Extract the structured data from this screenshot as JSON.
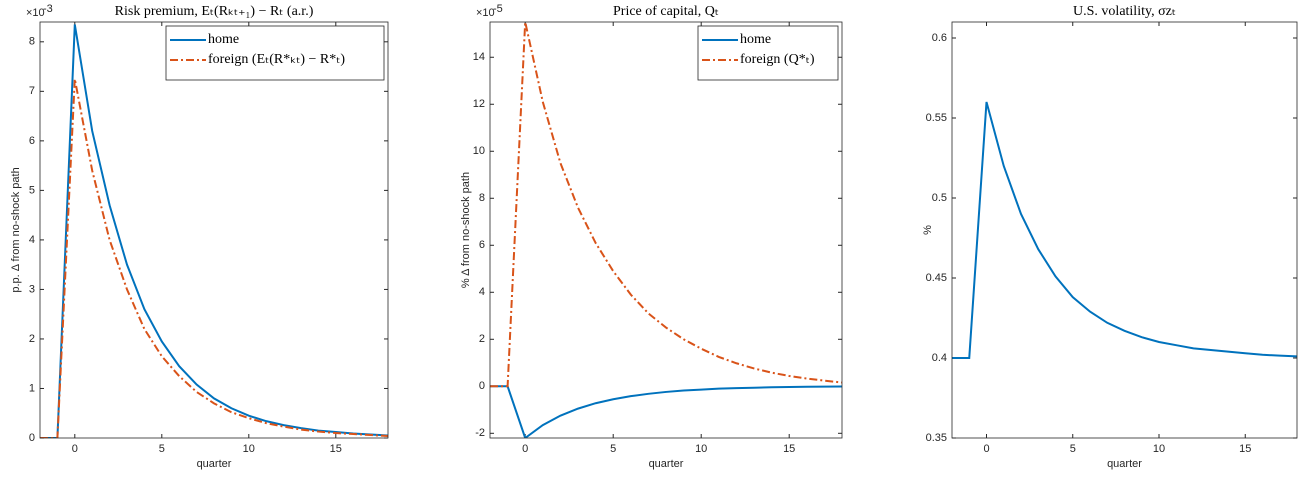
{
  "chart_data": [
    {
      "type": "line",
      "title": "Risk premium, Eₜ(Rₖₜ₊₁) − Rₜ (a.r.)",
      "x_label": "quarter",
      "y_label": "p.p. Δ from no-shock path",
      "y_multiplier": "×10",
      "y_exponent": "-3",
      "x": [
        -2,
        -1,
        0,
        1,
        2,
        3,
        4,
        5,
        6,
        7,
        8,
        9,
        10,
        11,
        12,
        13,
        14,
        15,
        16,
        17,
        18
      ],
      "series": [
        {
          "name": "home",
          "color": "#0072bd",
          "dash": "solid",
          "values": [
            0,
            0,
            8.35,
            6.2,
            4.7,
            3.5,
            2.6,
            1.95,
            1.45,
            1.08,
            0.8,
            0.6,
            0.45,
            0.34,
            0.26,
            0.2,
            0.15,
            0.12,
            0.09,
            0.07,
            0.05
          ]
        },
        {
          "name": "foreign (Eₜ(R*ₖₜ) − R*ₜ)",
          "color": "#d95319",
          "dash": "dash-dot",
          "values": [
            0,
            0,
            7.25,
            5.4,
            4.0,
            3.0,
            2.2,
            1.65,
            1.25,
            0.93,
            0.7,
            0.52,
            0.4,
            0.3,
            0.23,
            0.17,
            0.13,
            0.1,
            0.08,
            0.06,
            0.04
          ]
        }
      ],
      "xlim": [
        -2,
        18
      ],
      "xticks": [
        0,
        5,
        10,
        15
      ],
      "ylim": [
        0,
        8.4
      ],
      "yticks": [
        0,
        1,
        2,
        3,
        4,
        5,
        6,
        7,
        8
      ],
      "legend": "northeast"
    },
    {
      "type": "line",
      "title": "Price of capital, Qₜ",
      "x_label": "quarter",
      "y_label": "% Δ from no-shock path",
      "y_multiplier": "×10",
      "y_exponent": "-5",
      "x": [
        -2,
        -1,
        0,
        1,
        2,
        3,
        4,
        5,
        6,
        7,
        8,
        9,
        10,
        11,
        12,
        13,
        14,
        15,
        16,
        17,
        18
      ],
      "series": [
        {
          "name": "home",
          "color": "#0072bd",
          "dash": "solid",
          "values": [
            0,
            0,
            -2.2,
            -1.65,
            -1.25,
            -0.95,
            -0.72,
            -0.55,
            -0.42,
            -0.32,
            -0.24,
            -0.18,
            -0.14,
            -0.1,
            -0.08,
            -0.06,
            -0.04,
            -0.03,
            -0.02,
            -0.015,
            -0.01
          ]
        },
        {
          "name": "foreign (Q*ₜ)",
          "color": "#d95319",
          "dash": "dash-dot",
          "values": [
            0,
            0,
            15.5,
            12.1,
            9.5,
            7.6,
            6.1,
            4.9,
            3.9,
            3.1,
            2.5,
            2.0,
            1.6,
            1.25,
            0.98,
            0.76,
            0.58,
            0.44,
            0.33,
            0.24,
            0.16
          ]
        }
      ],
      "xlim": [
        -2,
        18
      ],
      "xticks": [
        0,
        5,
        10,
        15
      ],
      "ylim": [
        -2.2,
        15.5
      ],
      "yticks": [
        -2,
        0,
        2,
        4,
        6,
        8,
        10,
        12,
        14
      ],
      "legend": "northeast"
    },
    {
      "type": "line",
      "title": "U.S. volatility, σzₜ",
      "x_label": "quarter",
      "y_label": "%",
      "x": [
        -2,
        -1,
        0,
        1,
        2,
        3,
        4,
        5,
        6,
        7,
        8,
        9,
        10,
        11,
        12,
        13,
        14,
        15,
        16,
        17,
        18
      ],
      "color": "#0072bd",
      "values": [
        0.4,
        0.4,
        0.56,
        0.52,
        0.49,
        0.468,
        0.451,
        0.438,
        0.429,
        0.422,
        0.417,
        0.413,
        0.41,
        0.408,
        0.406,
        0.405,
        0.404,
        0.403,
        0.402,
        0.4015,
        0.401
      ],
      "xlim": [
        -2,
        18
      ],
      "xticks": [
        0,
        5,
        10,
        15
      ],
      "ylim": [
        0.35,
        0.61
      ],
      "yticks": [
        0.35,
        0.4,
        0.45,
        0.5,
        0.55,
        0.6
      ]
    }
  ]
}
